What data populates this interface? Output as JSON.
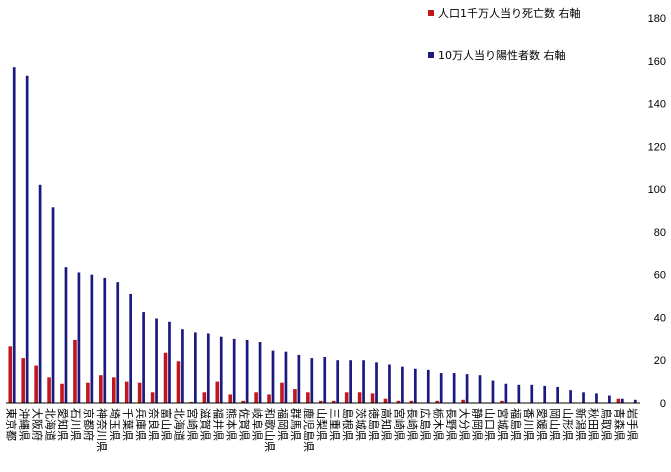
{
  "chart_data": {
    "type": "bar",
    "title": "",
    "xlabel": "",
    "ylabel": "",
    "ylim": [
      0,
      180
    ],
    "yticks": [
      0,
      20,
      40,
      60,
      80,
      100,
      120,
      140,
      160,
      180
    ],
    "y_axis_side": "right",
    "grid": false,
    "legend_position": "top-right",
    "categories": [
      "東京都",
      "沖縄県",
      "大阪府",
      "北海道",
      "愛知県",
      "石川県",
      "京都府",
      "神奈川県",
      "埼玉県",
      "千葉県",
      "兵庫県",
      "奈良県",
      "富山県",
      "北海道",
      "宮崎県",
      "滋賀県",
      "福井県",
      "熊本県",
      "佐賀県",
      "岐阜県",
      "和歌山県",
      "福岡県",
      "群馬県",
      "鹿児島県",
      "山梨県",
      "三重県",
      "島根県",
      "茨城県",
      "徳島県",
      "高知県",
      "宮崎県",
      "長崎県",
      "広島県",
      "栃木県",
      "長野県",
      "大分県",
      "静岡県",
      "山口県",
      "宮城県",
      "福島県",
      "香川県",
      "愛媛県",
      "岡山県",
      "山形県",
      "新潟県",
      "秋田県",
      "鳥取県",
      "青森県",
      "岩手県"
    ],
    "series": [
      {
        "name": "人口1千万人当り死亡数 右軸",
        "color": "#c0161d",
        "values": [
          26.5,
          21,
          17.5,
          12,
          9,
          29.5,
          9.5,
          13,
          12,
          10,
          9.5,
          5,
          23.5,
          19.5,
          0.5,
          5,
          10,
          4,
          1,
          5,
          4,
          9.5,
          6.5,
          5,
          1,
          1,
          5,
          5,
          4.5,
          2,
          1,
          1,
          0,
          1,
          0,
          1.5,
          0,
          0,
          1,
          0,
          0,
          0,
          0,
          0,
          0,
          0,
          0,
          2,
          0
        ]
      },
      {
        "name": "10万人当り陽性者数 右軸",
        "color": "#1a1a80",
        "values": [
          157,
          153,
          102,
          91.5,
          63.5,
          61,
          60,
          58.5,
          56.5,
          51,
          42.5,
          39.5,
          38,
          34.5,
          33,
          32.5,
          31,
          30,
          29.5,
          28.5,
          24.5,
          24,
          22.5,
          21,
          21.5,
          20,
          20,
          20,
          19,
          18,
          17,
          16,
          15.5,
          14,
          14,
          13.5,
          13,
          10.5,
          9,
          8.5,
          8.5,
          8,
          7.5,
          6,
          5,
          4.5,
          3.5,
          2,
          1.5
        ]
      }
    ]
  }
}
